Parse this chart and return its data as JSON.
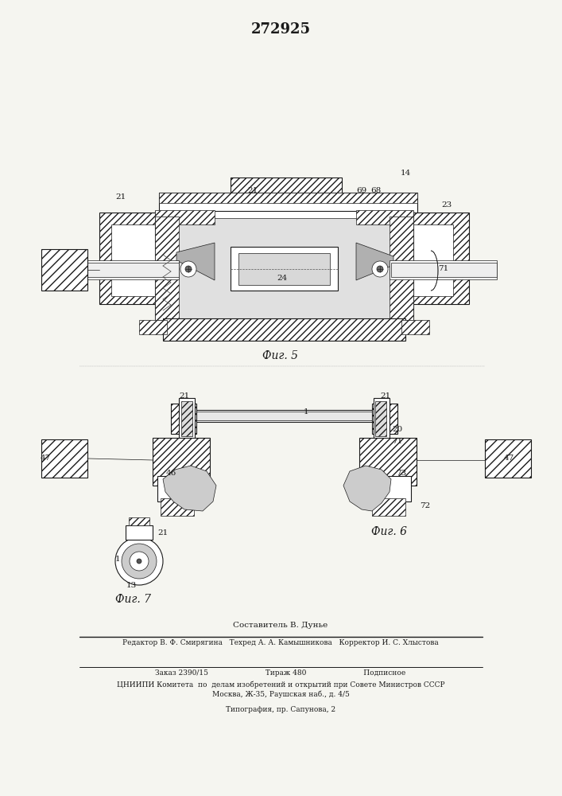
{
  "patent_number": "272925",
  "fig5_label": "Фиг. 5",
  "fig6_label": "Фиг. 6",
  "fig7_label": "Фиг. 7",
  "composer_line": "Составитель В. Дунье",
  "editor_line": "Редактор В. Ф. Смирягина   Техред А. А. Камышникова   Корректор И. С. Хлыстова",
  "order_line": "Заказ 2390/15                         Тираж 480                         Подписное",
  "org_line1": "ЦНИИПИ Комитета  по  делам изобретений и открытий при Совете Министров СССР",
  "org_line2": "Москва, Ж-35, Раушская наб., д. 4/5",
  "print_line": "Типография, пр. Сапунова, 2",
  "bg_color": "#f5f5f0",
  "line_color": "#1a1a1a"
}
